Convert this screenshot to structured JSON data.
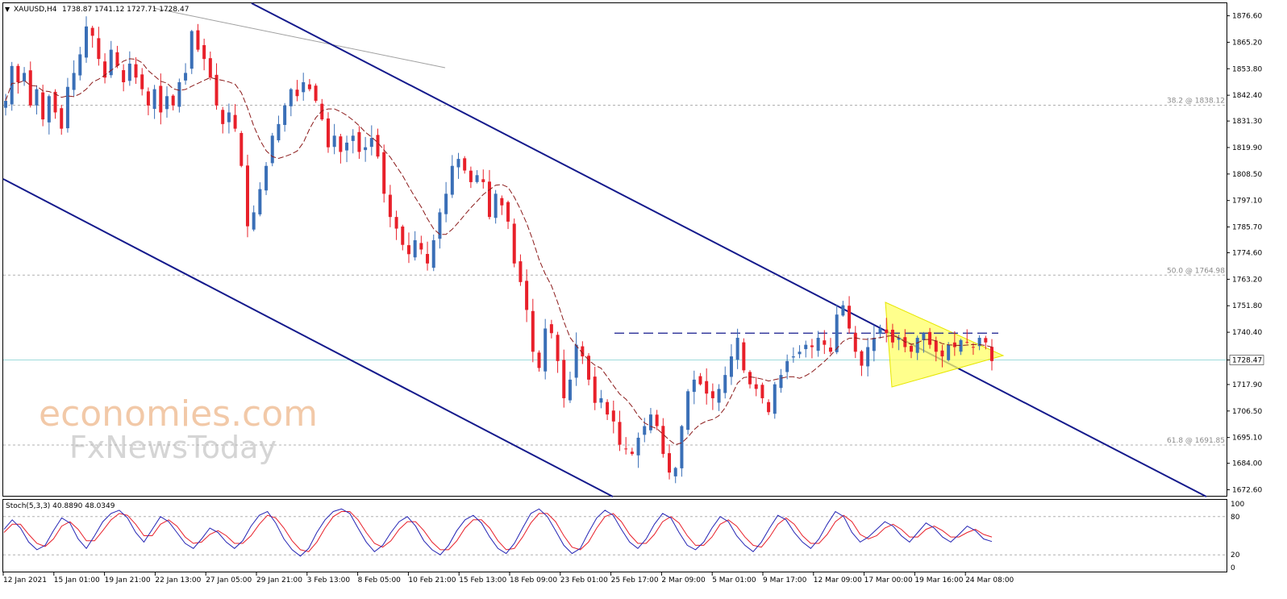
{
  "header": {
    "symbol": "XAUUSD,H4",
    "ohlc": "1738.87 1741.12 1727.71 1728.47"
  },
  "indicator": {
    "label": "Stoch(5,3,3) 40.8890 48.0349",
    "levels": [
      "100",
      "80",
      "20",
      "0"
    ]
  },
  "watermark": {
    "line1": "economies.com",
    "line2": "FxNewsToday"
  },
  "colors": {
    "bull": "#3a6fb7",
    "bear": "#e8202a",
    "ma": "#8b1a1a",
    "channel": "#141a8c",
    "triangle_fill": "#ffff66",
    "price_line": "#9fdcdc",
    "stoch_main": "#2424b4",
    "stoch_signal": "#e8202a"
  },
  "chart_data": {
    "type": "candlestick",
    "timeframe": "H4",
    "current_price": "1728.47",
    "ylim": [
      1670,
      1882
    ],
    "y_ticks": [
      "1876.60",
      "1865.20",
      "1853.80",
      "1842.40",
      "1831.30",
      "1819.90",
      "1808.50",
      "1797.10",
      "1785.70",
      "1774.60",
      "1763.20",
      "1751.80",
      "1740.40",
      "1728.47",
      "1717.90",
      "1706.50",
      "1695.10",
      "1684.00",
      "1672.60"
    ],
    "x_ticks": [
      "12 Jan 2021",
      "15 Jan 01:00",
      "19 Jan 21:00",
      "22 Jan 13:00",
      "27 Jan 05:00",
      "29 Jan 21:00",
      "3 Feb 13:00",
      "8 Feb 05:00",
      "10 Feb 21:00",
      "15 Feb 13:00",
      "18 Feb 09:00",
      "23 Feb 01:00",
      "25 Feb 17:00",
      "2 Mar 09:00",
      "5 Mar 01:00",
      "9 Mar 17:00",
      "12 Mar 09:00",
      "17 Mar 00:00",
      "19 Mar 16:00",
      "24 Mar 08:00"
    ],
    "fibonacci": [
      {
        "label": "38.2 @ 1838.12",
        "value": 1838.12
      },
      {
        "label": "50.0 @ 1764.98",
        "value": 1764.98
      },
      {
        "label": "61.8 @ 1691.85",
        "value": 1691.85
      }
    ],
    "resistance_level": 1740.0,
    "path": [
      1840,
      1855,
      1848,
      1852,
      1838,
      1845,
      1832,
      1842,
      1835,
      1828,
      1846,
      1852,
      1860,
      1872,
      1868,
      1858,
      1850,
      1862,
      1855,
      1848,
      1856,
      1850,
      1845,
      1838,
      1845,
      1835,
      1842,
      1838,
      1848,
      1852,
      1870,
      1862,
      1858,
      1850,
      1838,
      1830,
      1835,
      1828,
      1812,
      1786,
      1792,
      1802,
      1812,
      1825,
      1830,
      1838,
      1845,
      1842,
      1848,
      1845,
      1840,
      1832,
      1820,
      1825,
      1818,
      1822,
      1825,
      1818,
      1820,
      1824,
      1816,
      1800,
      1790,
      1785,
      1778,
      1774,
      1780,
      1776,
      1770,
      1780,
      1792,
      1800,
      1812,
      1815,
      1810,
      1805,
      1808,
      1805,
      1790,
      1800,
      1795,
      1788,
      1770,
      1762,
      1750,
      1732,
      1725,
      1742,
      1740,
      1728,
      1712,
      1720,
      1735,
      1730,
      1720,
      1710,
      1712,
      1705,
      1702,
      1692,
      1690,
      1688,
      1695,
      1700,
      1705,
      1700,
      1688,
      1680,
      1682,
      1700,
      1715,
      1720,
      1718,
      1714,
      1712,
      1716,
      1722,
      1730,
      1738,
      1724,
      1718,
      1716,
      1712,
      1706,
      1718,
      1722,
      1728,
      1730,
      1732,
      1735,
      1734,
      1738,
      1735,
      1732,
      1748,
      1752,
      1742,
      1732,
      1726,
      1734,
      1738,
      1742,
      1740,
      1736,
      1738,
      1734,
      1732,
      1738,
      1740,
      1735,
      1732,
      1730,
      1735,
      1734,
      1737,
      1736,
      1734,
      1738,
      1736,
      1728
    ],
    "stochastic": {
      "main": [
        60,
        75,
        62,
        40,
        28,
        35,
        58,
        78,
        70,
        45,
        30,
        50,
        72,
        85,
        90,
        78,
        55,
        40,
        60,
        80,
        72,
        55,
        38,
        30,
        45,
        62,
        55,
        40,
        30,
        42,
        65,
        82,
        88,
        70,
        45,
        28,
        18,
        30,
        55,
        75,
        88,
        92,
        85,
        62,
        40,
        25,
        35,
        55,
        72,
        80,
        65,
        42,
        28,
        20,
        35,
        58,
        75,
        82,
        70,
        48,
        30,
        22,
        38,
        62,
        85,
        92,
        80,
        58,
        35,
        22,
        30,
        55,
        78,
        90,
        82,
        60,
        40,
        30,
        45,
        68,
        85,
        78,
        55,
        35,
        28,
        40,
        62,
        80,
        72,
        50,
        35,
        25,
        40,
        62,
        82,
        75,
        55,
        40,
        30,
        45,
        68,
        88,
        80,
        55,
        40,
        48,
        60,
        72,
        65,
        50,
        40,
        55,
        70,
        62,
        48,
        40,
        52,
        65,
        58,
        45,
        40.9
      ],
      "signal": [
        55,
        68,
        68,
        52,
        38,
        33,
        45,
        65,
        72,
        60,
        42,
        42,
        58,
        75,
        85,
        82,
        68,
        50,
        50,
        68,
        75,
        65,
        48,
        38,
        40,
        52,
        58,
        50,
        38,
        38,
        50,
        68,
        82,
        78,
        62,
        42,
        28,
        25,
        40,
        62,
        80,
        88,
        88,
        75,
        55,
        38,
        32,
        42,
        60,
        72,
        72,
        58,
        40,
        28,
        28,
        42,
        62,
        75,
        75,
        62,
        42,
        28,
        30,
        48,
        70,
        85,
        85,
        72,
        50,
        32,
        28,
        40,
        62,
        80,
        85,
        72,
        52,
        38,
        38,
        52,
        72,
        80,
        70,
        50,
        35,
        35,
        48,
        68,
        75,
        65,
        48,
        35,
        32,
        48,
        68,
        78,
        68,
        50,
        38,
        38,
        52,
        72,
        82,
        72,
        52,
        45,
        50,
        62,
        68,
        60,
        48,
        48,
        60,
        65,
        58,
        48,
        48,
        55,
        60,
        52,
        48.0
      ]
    }
  }
}
